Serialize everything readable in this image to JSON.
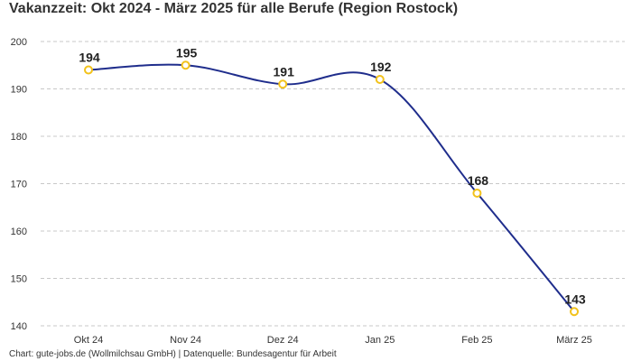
{
  "chart_data": {
    "type": "line",
    "title": "Vakanzzeit: Okt 2024 - März 2025 für alle Berufe (Region Rostock)",
    "categories": [
      "Okt 24",
      "Nov 24",
      "Dez 24",
      "Jan 25",
      "Feb 25",
      "März 25"
    ],
    "values": [
      194,
      195,
      191,
      192,
      168,
      143
    ],
    "data_labels": [
      "194",
      "195",
      "191",
      "192",
      "168",
      "143"
    ],
    "y_ticks": [
      "140",
      "150",
      "160",
      "170",
      "180",
      "190",
      "200"
    ],
    "ylim": [
      140,
      200
    ],
    "xlabel": "",
    "ylabel": "",
    "grid": true,
    "line_color": "#1f2d8c",
    "marker_color": "#f2c21b"
  },
  "footer": "Chart: gute-jobs.de (Wollmilchsau GmbH) | Datenquelle: Bundesagentur für Arbeit"
}
